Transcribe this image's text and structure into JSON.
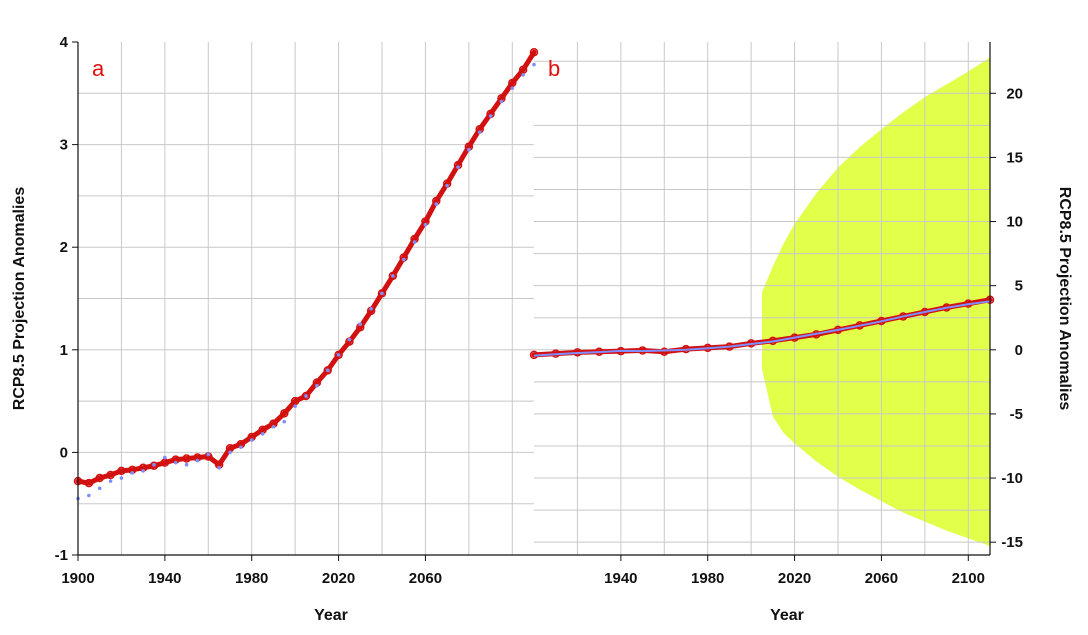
{
  "colors": {
    "model": "#d21010",
    "observed": "#7f8fff",
    "band": "#e2ff4a",
    "grid": "#c8c8c8",
    "panel_label": "#e01010"
  },
  "chart_data": [
    {
      "type": "line",
      "panel_label": "a",
      "xlabel": "Year",
      "ylabel": "RCP8.5 Projection Anomalies",
      "xlim": [
        1900,
        2110
      ],
      "ylim": [
        -1,
        4
      ],
      "xticks": [
        1900,
        1940,
        1980,
        2020,
        2060
      ],
      "xtick_labels": [
        "1900",
        "1940",
        "1980",
        "2020",
        "2060"
      ],
      "yticks": [
        -1,
        0,
        1,
        2,
        3,
        4
      ],
      "ytick_labels": [
        "-1",
        "0",
        "1",
        "2",
        "3",
        "4"
      ],
      "grid": true,
      "series": [
        {
          "style": "red-circles",
          "x": [
            1900,
            1905,
            1910,
            1915,
            1920,
            1925,
            1930,
            1935,
            1940,
            1945,
            1950,
            1955,
            1960,
            1965,
            1970,
            1975,
            1980,
            1985,
            1990,
            1995,
            2000,
            2005,
            2010,
            2015,
            2020,
            2025,
            2030,
            2035,
            2040,
            2045,
            2050,
            2055,
            2060,
            2065,
            2070,
            2075,
            2080,
            2085,
            2090,
            2095,
            2100,
            2105,
            2110
          ],
          "y": [
            -0.28,
            -0.3,
            -0.25,
            -0.22,
            -0.18,
            -0.17,
            -0.15,
            -0.13,
            -0.1,
            -0.07,
            -0.06,
            -0.05,
            -0.04,
            -0.12,
            0.04,
            0.08,
            0.15,
            0.22,
            0.28,
            0.38,
            0.5,
            0.55,
            0.68,
            0.8,
            0.95,
            1.08,
            1.22,
            1.38,
            1.55,
            1.72,
            1.9,
            2.08,
            2.25,
            2.45,
            2.62,
            2.8,
            2.98,
            3.15,
            3.3,
            3.45,
            3.6,
            3.73,
            3.9
          ]
        },
        {
          "style": "blue-dots",
          "x": [
            1900,
            1905,
            1910,
            1915,
            1920,
            1925,
            1930,
            1935,
            1940,
            1945,
            1950,
            1955,
            1960,
            1965,
            1970,
            1975,
            1980,
            1985,
            1990,
            1995,
            2000,
            2005,
            2010,
            2015,
            2020,
            2025,
            2030,
            2035,
            2040,
            2045,
            2050,
            2055,
            2060,
            2065,
            2070,
            2075,
            2080,
            2085,
            2090,
            2095,
            2100,
            2105,
            2110
          ],
          "y": [
            -0.45,
            -0.42,
            -0.35,
            -0.28,
            -0.25,
            -0.2,
            -0.18,
            -0.12,
            -0.05,
            -0.1,
            -0.12,
            -0.08,
            -0.02,
            -0.15,
            0.0,
            0.05,
            0.12,
            0.18,
            0.25,
            0.3,
            0.45,
            0.55,
            0.65,
            0.8,
            0.95,
            1.1,
            1.25,
            1.4,
            1.55,
            1.72,
            1.88,
            2.05,
            2.22,
            2.42,
            2.6,
            2.78,
            2.95,
            3.12,
            3.28,
            3.42,
            3.55,
            3.68,
            3.78
          ]
        }
      ]
    },
    {
      "type": "area",
      "panel_label": "b",
      "xlabel": "Year",
      "ylabel": "RCP8.5 Projection Anomalies",
      "xlim": [
        1900,
        2110
      ],
      "ylim": [
        -16,
        24
      ],
      "xticks": [
        1940,
        1980,
        2020,
        2060,
        2100
      ],
      "xtick_labels": [
        "1940",
        "1980",
        "2020",
        "2060",
        "2100"
      ],
      "yticks": [
        -15,
        -10,
        -5,
        0,
        5,
        10,
        15,
        20
      ],
      "ytick_labels": [
        "-15",
        "-10",
        "-5",
        "0",
        "5",
        "10",
        "15",
        "20"
      ],
      "grid": true,
      "band": {
        "x": [
          2005,
          2010,
          2015,
          2020,
          2030,
          2040,
          2050,
          2060,
          2070,
          2080,
          2090,
          2100,
          2110
        ],
        "upper": [
          4.5,
          6.5,
          8.3,
          9.8,
          12.2,
          14.2,
          15.8,
          17.2,
          18.5,
          19.7,
          20.7,
          21.7,
          22.8
        ],
        "lower": [
          -1.5,
          -5.2,
          -6.5,
          -7.3,
          -8.7,
          -9.9,
          -10.9,
          -11.8,
          -12.7,
          -13.4,
          -14.1,
          -14.7,
          -15.3
        ]
      },
      "series": [
        {
          "style": "red-circles",
          "x": [
            1900,
            1910,
            1920,
            1930,
            1940,
            1950,
            1960,
            1970,
            1980,
            1990,
            2000,
            2010,
            2020,
            2030,
            2040,
            2050,
            2060,
            2070,
            2080,
            2090,
            2100,
            2110
          ],
          "y": [
            -0.4,
            -0.3,
            -0.2,
            -0.15,
            -0.1,
            -0.05,
            -0.15,
            0.05,
            0.15,
            0.25,
            0.5,
            0.7,
            0.95,
            1.2,
            1.55,
            1.9,
            2.25,
            2.6,
            2.95,
            3.3,
            3.6,
            3.9
          ]
        },
        {
          "style": "blue-line",
          "x": [
            1900,
            1910,
            1920,
            1930,
            1940,
            1950,
            1960,
            1970,
            1980,
            1990,
            2000,
            2010,
            2020,
            2030,
            2040,
            2050,
            2060,
            2070,
            2080,
            2090,
            2100,
            2110
          ],
          "y": [
            -0.45,
            -0.35,
            -0.25,
            -0.18,
            -0.08,
            -0.1,
            -0.05,
            0.0,
            0.12,
            0.25,
            0.45,
            0.65,
            0.95,
            1.25,
            1.55,
            1.88,
            2.22,
            2.6,
            2.95,
            3.28,
            3.55,
            3.78
          ]
        }
      ]
    }
  ]
}
